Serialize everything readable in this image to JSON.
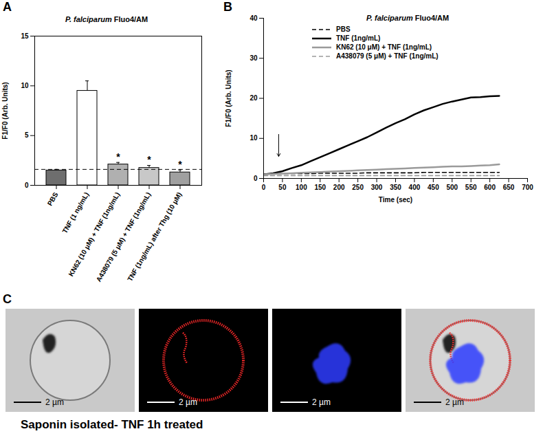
{
  "chart_data": [
    {
      "type": "bar",
      "panel": "A",
      "title": "P. falciparum Fluo4/AM",
      "y_label": "F1/F0 (Arb. Units)",
      "categories": [
        "PBS",
        "TNF (1 ng/mL)",
        "KN62 (10 μM) + TNF (1ng/mL)",
        "A438079 (5 μM) + TNF (1ng/mL)",
        "TNF (1ng/mL) after Thg (10 μM)"
      ],
      "values": [
        1.5,
        9.5,
        2.1,
        1.75,
        1.3
      ],
      "errors": [
        0.1,
        1.0,
        0.2,
        0.25,
        0.25
      ],
      "significance": [
        null,
        null,
        "*",
        "*",
        "*"
      ],
      "reference_line": 1.6,
      "colors": [
        "#6e6e6e",
        "#ffffff",
        "#b0b0b0",
        "#c8c8c8",
        "#a0a0a0"
      ],
      "ylim": [
        0,
        15
      ],
      "yticks": [
        0,
        5,
        10,
        15
      ]
    },
    {
      "type": "line",
      "panel": "B",
      "title": "P. falciparum Fluo4/AM",
      "x_label": "Time (sec)",
      "y_label": "F1/F0 (Arb. Units)",
      "x": [
        0,
        25,
        50,
        75,
        100,
        125,
        150,
        175,
        200,
        225,
        250,
        275,
        300,
        325,
        350,
        375,
        400,
        425,
        450,
        475,
        500,
        525,
        550,
        575,
        600,
        625
      ],
      "series": [
        {
          "name": "PBS",
          "color": "#000000",
          "line_style": "dashed",
          "values": [
            1.1,
            1.1,
            1.2,
            1.2,
            1.2,
            1.2,
            1.3,
            1.3,
            1.3,
            1.3,
            1.3,
            1.4,
            1.4,
            1.4,
            1.4,
            1.4,
            1.4,
            1.5,
            1.5,
            1.5,
            1.5,
            1.5,
            1.5,
            1.5,
            1.5,
            1.5
          ]
        },
        {
          "name": "TNF (1ng/mL)",
          "color": "#000000",
          "line_style": "solid",
          "values": [
            1.0,
            1.3,
            1.8,
            2.6,
            3.3,
            4.3,
            5.3,
            6.3,
            7.3,
            8.3,
            9.3,
            10.3,
            11.5,
            12.7,
            13.8,
            14.8,
            16.0,
            17.0,
            17.8,
            18.6,
            19.2,
            19.7,
            20.2,
            20.3,
            20.5,
            20.6
          ]
        },
        {
          "name": "KN62 (10 μM) + TNF (1ng/mL)",
          "color": "#9a9a9a",
          "line_style": "solid",
          "values": [
            1.0,
            1.1,
            1.2,
            1.3,
            1.4,
            1.5,
            1.6,
            1.7,
            1.8,
            1.9,
            2.0,
            2.1,
            2.2,
            2.3,
            2.4,
            2.5,
            2.6,
            2.7,
            2.8,
            2.9,
            3.0,
            3.0,
            3.1,
            3.2,
            3.3,
            3.5
          ]
        },
        {
          "name": "A438079 (5 μM) + TNF (1ng/mL)",
          "color": "#9a9a9a",
          "line_style": "dashed",
          "values": [
            0.7,
            0.7,
            0.7,
            0.7,
            0.7,
            0.7,
            0.7,
            0.7,
            0.7,
            0.7,
            0.7,
            0.7,
            0.7,
            0.7,
            0.7,
            0.7,
            0.7,
            0.7,
            0.7,
            0.7,
            0.7,
            0.7,
            0.7,
            0.7,
            0.7,
            0.7
          ]
        }
      ],
      "stimulus_arrow": {
        "x": 40,
        "y": [
          11,
          5.5
        ]
      },
      "legend": "top-left",
      "xlim": [
        0,
        700
      ],
      "xticks": [
        0,
        50,
        100,
        150,
        200,
        250,
        300,
        350,
        400,
        450,
        500,
        550,
        600,
        650,
        700
      ],
      "ylim": [
        0,
        40
      ],
      "yticks": [
        0,
        10,
        20,
        30,
        40
      ]
    }
  ],
  "panel_c": {
    "panel": "C",
    "images": [
      {
        "scale_bar": "2 µm"
      },
      {
        "scale_bar": "2 µm"
      },
      {
        "scale_bar": "2 µm"
      },
      {
        "scale_bar": "2 µm"
      }
    ],
    "caption": "Saponin isolated- TNF 1h treated"
  }
}
